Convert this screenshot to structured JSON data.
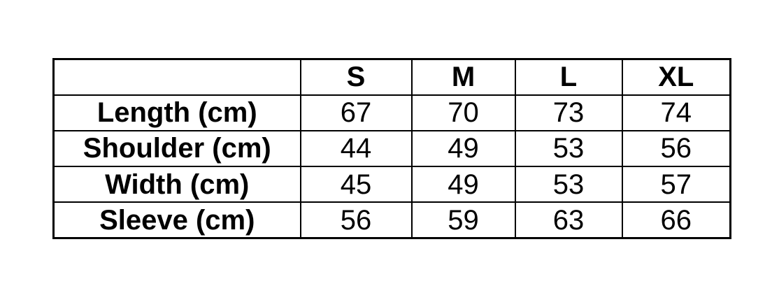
{
  "colors": {
    "background": "#ffffff",
    "border": "#000000",
    "text": "#000000"
  },
  "chart_data": {
    "type": "table",
    "column_headers": [
      "",
      "S",
      "M",
      "L",
      "XL"
    ],
    "rows": [
      {
        "label": "Length (cm)",
        "values": [
          67,
          70,
          73,
          74
        ]
      },
      {
        "label": "Shoulder (cm)",
        "values": [
          44,
          49,
          53,
          56
        ]
      },
      {
        "label": "Width (cm)",
        "values": [
          45,
          49,
          53,
          57
        ]
      },
      {
        "label": "Sleeve (cm)",
        "values": [
          56,
          59,
          63,
          66
        ]
      }
    ],
    "grid": true,
    "legend_position": "none"
  }
}
